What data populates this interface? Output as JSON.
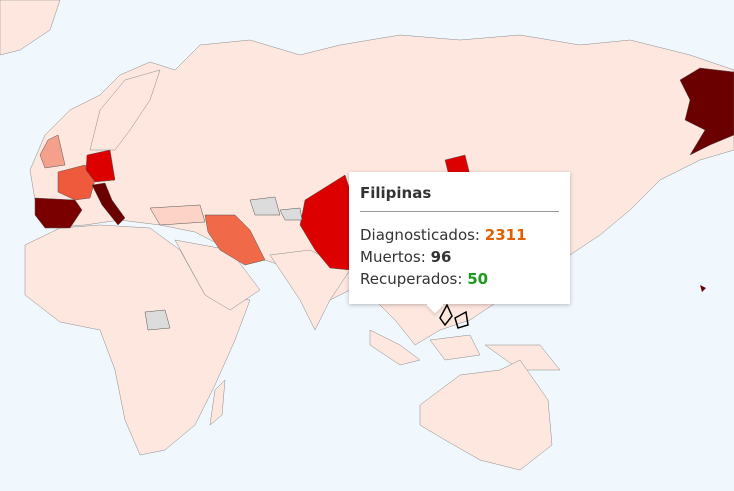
{
  "map": {
    "ocean_color": "#f0f7fd",
    "land_color": "#fde7df",
    "highlighted_countries": [
      {
        "name": "Spain",
        "color": "#7a0000"
      },
      {
        "name": "France",
        "color": "#f05a3c"
      },
      {
        "name": "United Kingdom",
        "color": "#f4a08a"
      },
      {
        "name": "Germany",
        "color": "#dd0000"
      },
      {
        "name": "Italy",
        "color": "#6a0000"
      },
      {
        "name": "Iran",
        "color": "#f06a4a"
      },
      {
        "name": "China",
        "color": "#dd0000"
      },
      {
        "name": "United States",
        "color": "#6a0000"
      },
      {
        "name": "Turkey",
        "color": "#fcd3c6"
      },
      {
        "name": "Philippines",
        "color": "#000000"
      }
    ],
    "no_data_color": "#dcdcdc"
  },
  "tooltip": {
    "country": "Filipinas",
    "diagnosed_label": "Diagnosticados:",
    "diagnosed_value": "2311",
    "diagnosed_color": "#e06000",
    "deaths_label": "Muertos:",
    "deaths_value": "96",
    "recovered_label": "Recuperados:",
    "recovered_value": "50",
    "recovered_color": "#1a9a1a"
  }
}
